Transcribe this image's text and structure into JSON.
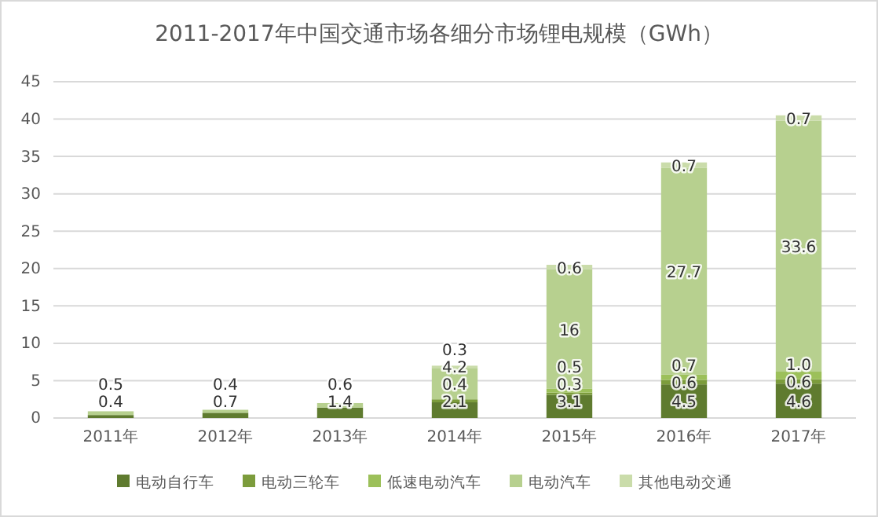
{
  "chart_data": {
    "type": "bar",
    "stacked": true,
    "title": "2011-2017年中国交通市场各细分市场锂电规模（GWh）",
    "categories": [
      "2011年",
      "2012年",
      "2013年",
      "2014年",
      "2015年",
      "2016年",
      "2017年"
    ],
    "series": [
      {
        "name": "电动自行车",
        "color": "#5f7b2f",
        "values": [
          0.4,
          0.7,
          1.4,
          2.1,
          3.1,
          4.5,
          4.6
        ],
        "value_labels": [
          "0.4",
          "0.7",
          "1.4",
          "2.1",
          "3.1",
          "4.5",
          "4.6"
        ]
      },
      {
        "name": "电动三轮车",
        "color": "#7c9c3c",
        "values": [
          null,
          null,
          null,
          0.4,
          0.3,
          0.6,
          0.6
        ],
        "value_labels": [
          null,
          null,
          null,
          "0.4",
          "0.3",
          "0.6",
          "0.6"
        ]
      },
      {
        "name": "低速电动汽车",
        "color": "#9cc05a",
        "values": [
          null,
          null,
          null,
          null,
          0.5,
          0.7,
          1.0
        ],
        "value_labels": [
          null,
          null,
          null,
          null,
          "0.5",
          "0.7",
          "1.0"
        ]
      },
      {
        "name": "电动汽车",
        "color": "#b7d08f",
        "values": [
          0.5,
          0.4,
          0.6,
          4.2,
          16,
          27.7,
          33.6
        ],
        "value_labels": [
          "0.5",
          "0.4",
          "0.6",
          "4.2",
          "16",
          "27.7",
          "33.6"
        ]
      },
      {
        "name": "其他电动交通",
        "color": "#cadcaa",
        "values": [
          null,
          null,
          null,
          0.3,
          0.6,
          0.7,
          0.7
        ],
        "value_labels": [
          null,
          null,
          null,
          "0.3",
          "0.6",
          "0.7",
          "0.7"
        ]
      }
    ],
    "ylim": [
      0,
      45
    ],
    "yticks": [
      0,
      5,
      10,
      15,
      20,
      25,
      30,
      35,
      40,
      45
    ],
    "grid": "y",
    "legend": "bottom"
  }
}
